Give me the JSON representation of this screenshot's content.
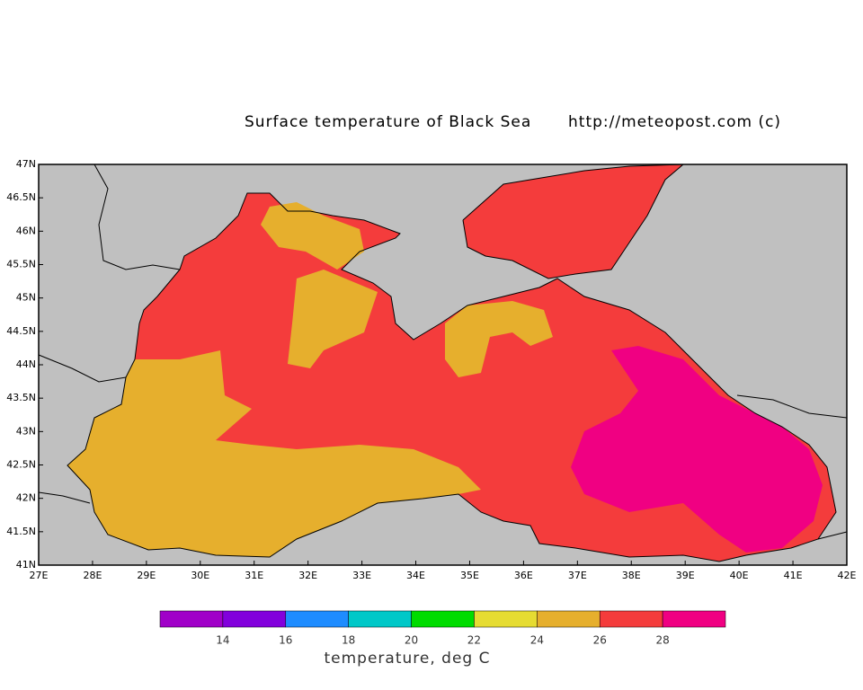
{
  "map": {
    "title": "Surface temperature of Black Sea",
    "source": "http://meteopost.com (c)",
    "xlim": [
      27,
      42
    ],
    "ylim": [
      41,
      47
    ],
    "xticks": [
      {
        "value": 27,
        "label": "27E"
      },
      {
        "value": 28,
        "label": "28E"
      },
      {
        "value": 29,
        "label": "29E"
      },
      {
        "value": 30,
        "label": "30E"
      },
      {
        "value": 31,
        "label": "31E"
      },
      {
        "value": 32,
        "label": "32E"
      },
      {
        "value": 33,
        "label": "33E"
      },
      {
        "value": 34,
        "label": "34E"
      },
      {
        "value": 35,
        "label": "35E"
      },
      {
        "value": 36,
        "label": "36E"
      },
      {
        "value": 37,
        "label": "37E"
      },
      {
        "value": 38,
        "label": "38E"
      },
      {
        "value": 39,
        "label": "39E"
      },
      {
        "value": 40,
        "label": "40E"
      },
      {
        "value": 41,
        "label": "41E"
      },
      {
        "value": 42,
        "label": "42E"
      }
    ],
    "yticks": [
      {
        "value": 41,
        "label": "41N"
      },
      {
        "value": 41.5,
        "label": "41.5N"
      },
      {
        "value": 42,
        "label": "42N"
      },
      {
        "value": 42.5,
        "label": "42.5N"
      },
      {
        "value": 43,
        "label": "43N"
      },
      {
        "value": 43.5,
        "label": "43.5N"
      },
      {
        "value": 44,
        "label": "44N"
      },
      {
        "value": 44.5,
        "label": "44.5N"
      },
      {
        "value": 45,
        "label": "45N"
      },
      {
        "value": 45.5,
        "label": "45.5N"
      },
      {
        "value": 46,
        "label": "46N"
      },
      {
        "value": 46.5,
        "label": "46.5N"
      },
      {
        "value": 47,
        "label": "47N"
      }
    ],
    "colorbar": {
      "label": "temperature, deg C",
      "levels": [
        14,
        16,
        18,
        20,
        22,
        24,
        26,
        28
      ],
      "colors": [
        "#a000c8",
        "#8200dc",
        "#1e8cff",
        "#00c8c8",
        "#00dc00",
        "#e6dc32",
        "#e6af2d",
        "#f43c3c",
        "#f00082"
      ]
    }
  }
}
